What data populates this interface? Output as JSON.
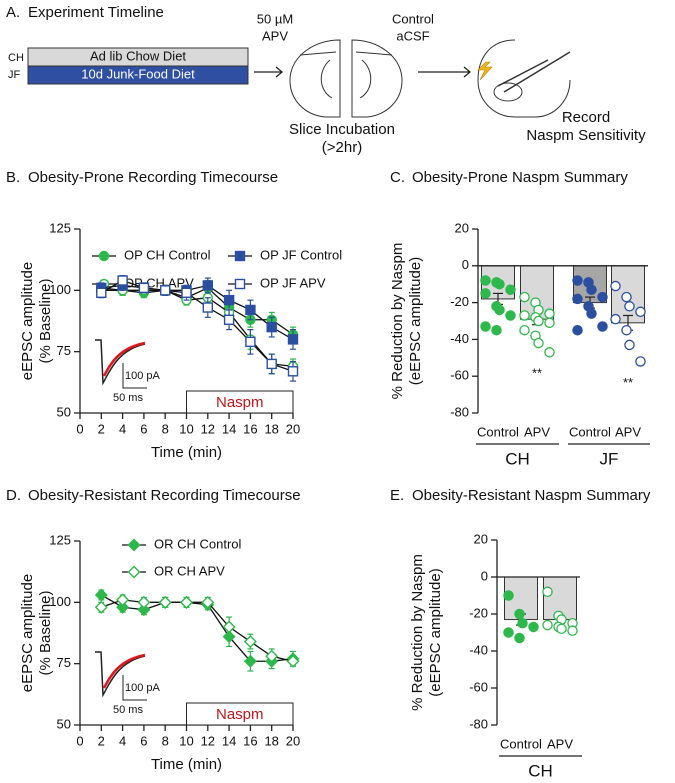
{
  "panel_a": {
    "label": "A.",
    "title": "Experiment Timeline",
    "groups": [
      {
        "label": "CH",
        "text": "Ad lib Chow Diet"
      },
      {
        "label": "JF",
        "text": "10d Junk-Food Diet"
      }
    ],
    "apv": [
      "50 µM",
      "APV"
    ],
    "control": [
      "Control",
      "aCSF"
    ],
    "incubation": [
      "Slice Incubation",
      "(>2hr)"
    ],
    "record": [
      "Record",
      "Naspm Sensitivity"
    ]
  },
  "chart_data": [
    {
      "type": "line",
      "panel": "B.",
      "title": "Obesity-Prone Recording Timecourse",
      "x": [
        2,
        4,
        6,
        8,
        10,
        12,
        14,
        16,
        18,
        20
      ],
      "xlim": [
        0,
        20
      ],
      "xticks": [
        0,
        2,
        4,
        6,
        8,
        10,
        12,
        14,
        16,
        18,
        20
      ],
      "ylim": [
        50,
        125
      ],
      "yticks": [
        50,
        75,
        100,
        125
      ],
      "xlabel": "Time (min)",
      "ylabel": [
        "eEPSC amplitude",
        "(% Baseline)"
      ],
      "series": [
        {
          "name": "OP CH Control",
          "color": "#2db84b",
          "marker": "circle",
          "filled": true,
          "values": [
            100,
            100,
            99,
            100,
            97,
            101,
            93,
            88,
            88,
            82
          ],
          "errors": [
            2,
            2,
            2,
            2,
            2,
            3,
            3,
            3,
            3,
            3
          ]
        },
        {
          "name": "OP CH APV",
          "color": "#2db84b",
          "marker": "circle",
          "filled": false,
          "values": [
            101,
            100,
            100,
            100,
            96,
            97,
            91,
            80,
            70,
            69
          ],
          "errors": [
            2,
            2,
            2,
            2,
            2,
            3,
            3,
            4,
            4,
            3
          ]
        },
        {
          "name": "OP JF Control",
          "color": "#2a4ea0",
          "marker": "square",
          "filled": true,
          "values": [
            101,
            102,
            101,
            100,
            100,
            102,
            96,
            92,
            85,
            80
          ],
          "errors": [
            2,
            2,
            2,
            2,
            2,
            3,
            4,
            4,
            4,
            4
          ]
        },
        {
          "name": "OP JF APV",
          "color": "#2a4ea0",
          "marker": "square",
          "filled": false,
          "values": [
            99,
            104,
            101,
            100,
            99,
            93,
            88,
            79,
            70,
            67
          ],
          "errors": [
            2,
            2,
            2,
            2,
            3,
            4,
            4,
            5,
            4,
            4
          ]
        }
      ],
      "annotation": {
        "text": "Naspm",
        "x": [
          10,
          20
        ]
      },
      "inset_labels": [
        "100 pA",
        "50 ms"
      ]
    },
    {
      "type": "bar",
      "panel": "C.",
      "title": "Obesity-Prone Naspm Summary",
      "categories": [
        "Control",
        "APV",
        "Control",
        "APV"
      ],
      "groups": [
        "CH",
        "JF"
      ],
      "ylim": [
        -80,
        20
      ],
      "yticks": [
        -80,
        -60,
        -40,
        -20,
        0,
        20
      ],
      "ylabel": [
        "% Reduction by Naspm",
        "(eEPSC amplitude)"
      ],
      "values": [
        -18,
        -29,
        -20,
        -31
      ],
      "errors": [
        3,
        3,
        3,
        4
      ],
      "bar_colors": [
        "#d9d9d9",
        "#d9d9d9",
        "#a6a6a6",
        "#d9d9d9"
      ],
      "point_colors": [
        "#2db84b",
        "#2db84b",
        "#2a4ea0",
        "#2a4ea0"
      ],
      "points_filled": [
        true,
        false,
        true,
        false
      ],
      "points": [
        [
          -8,
          -9,
          -10,
          -13,
          -15,
          -22,
          -24,
          -27,
          -33,
          -35
        ],
        [
          -17,
          -20,
          -24,
          -26,
          -27,
          -28,
          -30,
          -31,
          -35,
          -38,
          -42,
          -47
        ],
        [
          -8,
          -9,
          -13,
          -17,
          -18,
          -22,
          -26,
          -33,
          -35
        ],
        [
          -11,
          -17,
          -22,
          -25,
          -29,
          -35,
          -43,
          -52
        ]
      ],
      "significance": [
        null,
        "**",
        null,
        "**"
      ]
    },
    {
      "type": "line",
      "panel": "D.",
      "title": "Obesity-Resistant Recording Timecourse",
      "x": [
        2,
        4,
        6,
        8,
        10,
        12,
        14,
        16,
        18,
        20
      ],
      "xlim": [
        0,
        20
      ],
      "xticks": [
        0,
        2,
        4,
        6,
        8,
        10,
        12,
        14,
        16,
        18,
        20
      ],
      "ylim": [
        50,
        125
      ],
      "yticks": [
        50,
        75,
        100,
        125
      ],
      "xlabel": "Time (min)",
      "ylabel": [
        "eEPSC amplitude",
        "(% Baseline)"
      ],
      "series": [
        {
          "name": "OR CH Control",
          "color": "#2db84b",
          "marker": "diamond",
          "filled": true,
          "values": [
            103,
            98,
            97,
            100,
            100,
            99,
            86,
            76,
            76,
            77
          ],
          "errors": [
            2,
            2,
            2,
            2,
            2,
            2,
            4,
            4,
            3,
            3
          ]
        },
        {
          "name": "OR CH APV",
          "color": "#2db84b",
          "marker": "diamond",
          "filled": false,
          "values": [
            98,
            101,
            100,
            100,
            100,
            100,
            90,
            84,
            78,
            76
          ],
          "errors": [
            2,
            2,
            2,
            2,
            2,
            2,
            4,
            3,
            3,
            2
          ]
        }
      ],
      "annotation": {
        "text": "Naspm",
        "x": [
          10,
          20
        ]
      },
      "inset_labels": [
        "100 pA",
        "50 ms"
      ]
    },
    {
      "type": "bar",
      "panel": "E.",
      "title": "Obesity-Resistant Naspm Summary",
      "categories": [
        "Control",
        "APV"
      ],
      "groups": [
        "CH"
      ],
      "ylim": [
        -80,
        20
      ],
      "yticks": [
        -80,
        -60,
        -40,
        -20,
        0,
        20
      ],
      "ylabel": [
        "% Reduction by Naspm",
        "(eEPSC amplitude)"
      ],
      "values": [
        -23,
        -23
      ],
      "errors": [
        3,
        2
      ],
      "bar_colors": [
        "#d9d9d9",
        "#d9d9d9"
      ],
      "point_colors": [
        "#2db84b",
        "#2db84b"
      ],
      "points_filled": [
        true,
        false
      ],
      "points": [
        [
          -10,
          -20,
          -25,
          -27,
          -30,
          -33
        ],
        [
          -8,
          -21,
          -23,
          -25,
          -26,
          -27,
          -28,
          -29
        ]
      ],
      "significance": [
        null,
        null
      ]
    }
  ]
}
